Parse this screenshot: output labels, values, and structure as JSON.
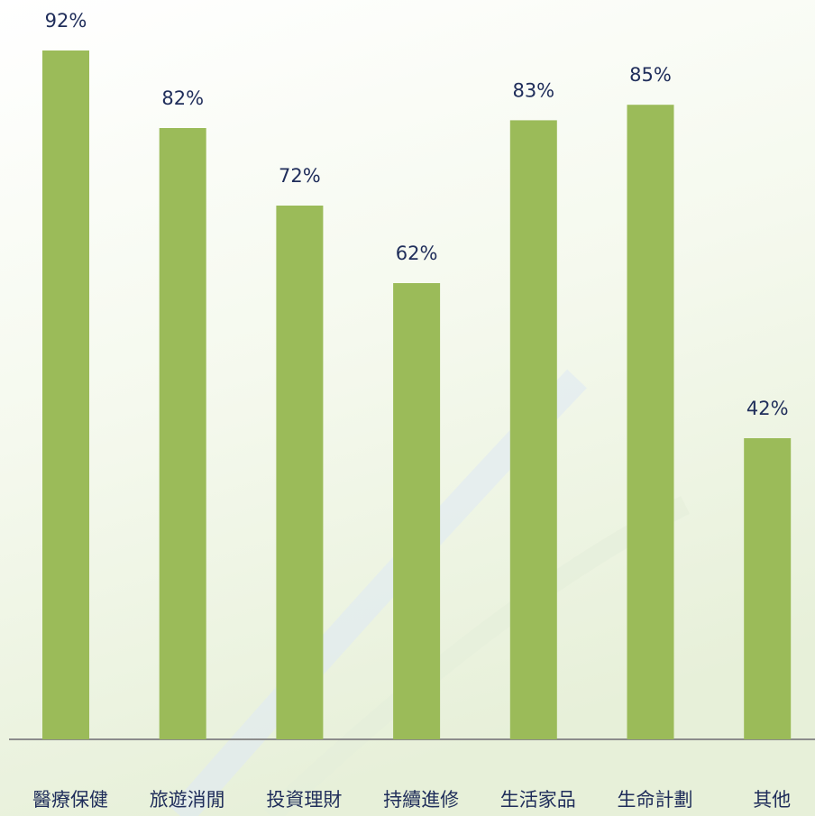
{
  "chart_data": {
    "type": "bar",
    "categories": [
      "醫療保健",
      "旅遊消閒",
      "投資理財",
      "持續進修",
      "生活家品",
      "生命計劃",
      "其他"
    ],
    "values": [
      92,
      82,
      72,
      62,
      83,
      85,
      42
    ],
    "value_labels": [
      "92%",
      "82%",
      "72%",
      "62%",
      "83%",
      "85%",
      "42%"
    ],
    "color": "#9bbb59"
  }
}
